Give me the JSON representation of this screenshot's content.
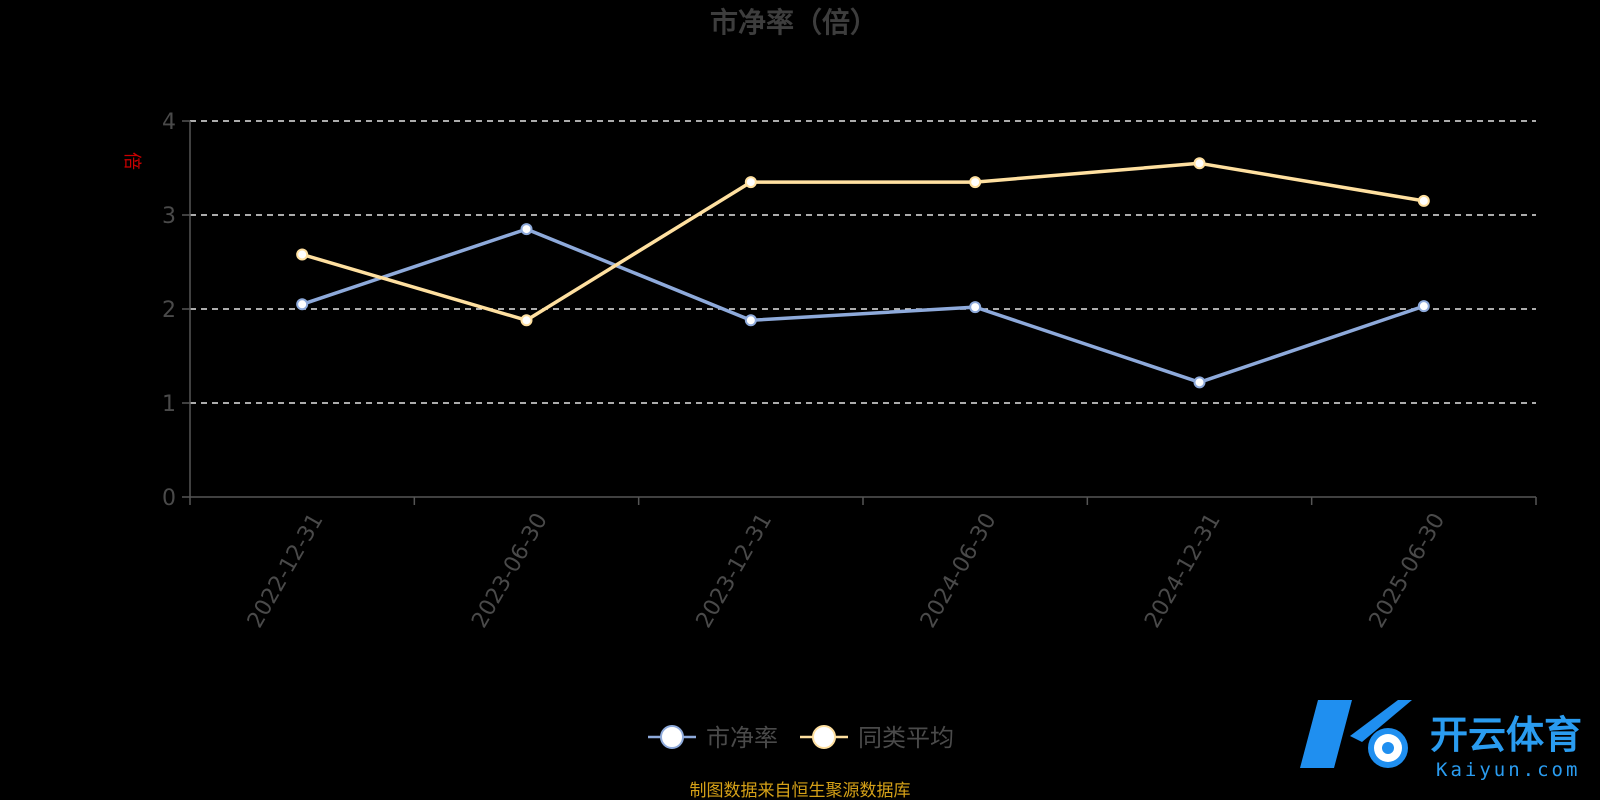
{
  "chart_data": {
    "type": "line",
    "title": "市净率（倍）",
    "ylabel": "倍",
    "categories": [
      "2022-12-31",
      "2023-06-30",
      "2023-12-31",
      "2024-06-30",
      "2024-12-31",
      "2025-06-30"
    ],
    "ylim": [
      0,
      4
    ],
    "yticks": [
      0,
      1,
      2,
      3,
      4
    ],
    "grid": true,
    "legend_position": "bottom",
    "series": [
      {
        "name": "市净率",
        "color": "#8eaadb",
        "values": [
          2.05,
          2.85,
          1.88,
          2.02,
          1.22,
          2.03
        ]
      },
      {
        "name": "同类平均",
        "color": "#ffe0a0",
        "values": [
          2.58,
          1.88,
          3.35,
          3.35,
          3.55,
          3.15
        ]
      }
    ]
  },
  "source_note": "制图数据来自恒生聚源数据库",
  "watermark": {
    "cn": "开云体育",
    "en": "Kaiyun.com"
  }
}
